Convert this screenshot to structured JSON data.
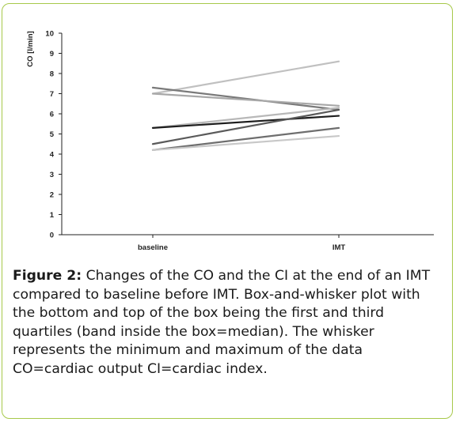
{
  "chart_data": {
    "type": "line",
    "categories": [
      "baseline",
      "IMT"
    ],
    "ylabel": "CO [l/min]",
    "ylim": [
      0,
      10
    ],
    "yticks": [
      0,
      1,
      2,
      3,
      4,
      5,
      6,
      7,
      8,
      9,
      10
    ],
    "grid": false,
    "series": [
      {
        "values": [
          7.0,
          8.6
        ],
        "color": "#c0c0c0"
      },
      {
        "values": [
          7.3,
          6.2
        ],
        "color": "#7a7a7a"
      },
      {
        "values": [
          7.0,
          6.4
        ],
        "color": "#a8a8a8"
      },
      {
        "values": [
          5.3,
          6.3
        ],
        "color": "#b8b8b8"
      },
      {
        "values": [
          5.3,
          5.9
        ],
        "color": "#1e1e1e"
      },
      {
        "values": [
          4.5,
          6.2
        ],
        "color": "#5a5a5a"
      },
      {
        "values": [
          4.2,
          5.3
        ],
        "color": "#6e6e6e"
      },
      {
        "values": [
          4.2,
          4.9
        ],
        "color": "#c8c8c8"
      }
    ]
  },
  "caption": {
    "label": "Figure 2:",
    "text": " Changes of the CO and the CI at the end of an IMT compared to baseline before IMT. Box-and-whisker plot with the bottom and top of the box being the first and third quartiles (band inside the box=median). The whisker represents the minimum and maximum of the data CO=cardiac output CI=cardiac index."
  }
}
